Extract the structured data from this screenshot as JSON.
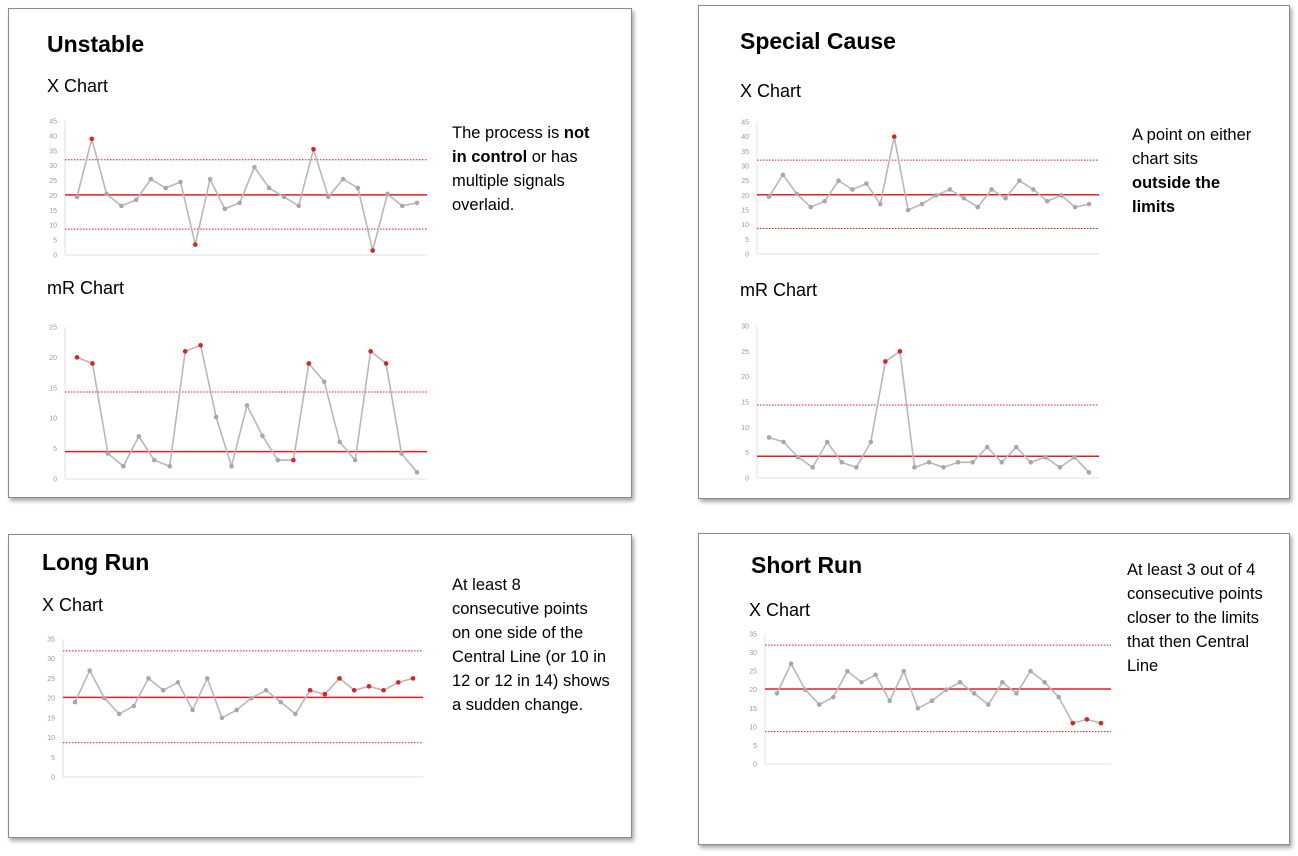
{
  "colors": {
    "signal": "#e02020",
    "line": "#b8b8b8",
    "point": "#a8a8a8",
    "axis": "#e2e2e2",
    "tick": "#9a9a9a"
  },
  "panels": [
    {
      "title": "Unstable",
      "desc": [
        {
          "t": "The process is ",
          "b": false
        },
        {
          "t": "not in control",
          "b": true
        },
        {
          "t": " or has multiple signals overlaid.",
          "b": false
        }
      ],
      "charts": [
        "X Chart",
        "mR Chart"
      ]
    },
    {
      "title": "Special Cause",
      "desc": [
        {
          "t": "A point on either chart sits ",
          "b": false
        },
        {
          "t": "outside the limits",
          "b": true
        }
      ],
      "charts": [
        "X Chart",
        "mR Chart"
      ]
    },
    {
      "title": "Long Run",
      "desc": [
        {
          "t": "At least 8 consecutive points on one side of the Central Line (or 10 in 12 or 12 in 14) shows a sudden change.",
          "b": false
        }
      ],
      "charts": [
        "X Chart"
      ]
    },
    {
      "title": "Short Run",
      "desc": [
        {
          "t": "At least 3 out of 4 consecutive points closer to the limits that then Central Line",
          "b": false
        }
      ],
      "charts": [
        "X Chart"
      ]
    }
  ],
  "chart_data": [
    {
      "id": "unstable-x",
      "type": "line",
      "title": "X Chart",
      "ylim": [
        0,
        45
      ],
      "yticks": [
        0,
        5,
        10,
        15,
        20,
        25,
        30,
        35,
        40,
        45
      ],
      "center": 20.2,
      "ucl": 32,
      "lcl": 8.7,
      "values": [
        19.5,
        39,
        20.5,
        16.5,
        18.5,
        25.5,
        22.5,
        24.5,
        3.5,
        25.5,
        15.5,
        17.5,
        29.5,
        22.5,
        19.5,
        16.5,
        35.5,
        19.5,
        25.5,
        22.5,
        1.5,
        20.5,
        16.5,
        17.5
      ],
      "signals": [
        1,
        8,
        16,
        20
      ]
    },
    {
      "id": "unstable-mr",
      "type": "line",
      "title": "mR Chart",
      "ylim": [
        0,
        25
      ],
      "yticks": [
        0,
        5,
        10,
        15,
        20,
        25
      ],
      "center": 4.5,
      "ucl": 14.3,
      "lcl": null,
      "values": [
        20,
        19,
        4.2,
        2.1,
        7,
        3.1,
        2.1,
        21,
        22,
        10.2,
        2.1,
        12.1,
        7.1,
        3.1,
        3.1,
        19,
        16,
        6.1,
        3.1,
        21,
        19,
        4.2,
        1.1
      ],
      "signals": [
        0,
        1,
        7,
        8,
        14,
        15,
        19,
        20
      ]
    },
    {
      "id": "special-x",
      "type": "line",
      "title": "X Chart",
      "ylim": [
        0,
        45
      ],
      "yticks": [
        0,
        5,
        10,
        15,
        20,
        25,
        30,
        35,
        40,
        45
      ],
      "center": 20.2,
      "ucl": 32,
      "lcl": 8.7,
      "values": [
        19.5,
        27,
        20.5,
        16,
        18,
        25,
        22,
        24,
        17,
        40,
        15,
        17,
        20,
        22,
        19,
        16,
        22,
        19,
        25,
        22,
        18,
        20,
        16,
        17
      ],
      "signals": [
        9
      ]
    },
    {
      "id": "special-mr",
      "type": "line",
      "title": "mR Chart",
      "ylim": [
        0,
        30
      ],
      "yticks": [
        0,
        5,
        10,
        15,
        20,
        25,
        30
      ],
      "center": 4.3,
      "ucl": 14.4,
      "lcl": null,
      "values": [
        8,
        7.1,
        4.1,
        2.1,
        7.1,
        3.1,
        2.1,
        7.1,
        23,
        25,
        2.1,
        3.1,
        2.1,
        3.1,
        3.1,
        6.1,
        3.1,
        6.1,
        3.1,
        4.1,
        2.1,
        4.1,
        1.1
      ],
      "signals": [
        8,
        9
      ]
    },
    {
      "id": "longrun-x",
      "type": "line",
      "title": "X Chart",
      "ylim": [
        0,
        35
      ],
      "yticks": [
        0,
        5,
        10,
        15,
        20,
        25,
        30,
        35
      ],
      "center": 20.2,
      "ucl": 32,
      "lcl": 8.7,
      "values": [
        19,
        27,
        20,
        16,
        18,
        25,
        22,
        24,
        17,
        25,
        15,
        17,
        20,
        22,
        19,
        16,
        22,
        21,
        25,
        22,
        23,
        22,
        24,
        25
      ],
      "signals": [
        16,
        17,
        18,
        19,
        20,
        21,
        22,
        23
      ]
    },
    {
      "id": "shortrun-x",
      "type": "line",
      "title": "X Chart",
      "ylim": [
        0,
        35
      ],
      "yticks": [
        0,
        5,
        10,
        15,
        20,
        25,
        30,
        35
      ],
      "center": 20.2,
      "ucl": 32,
      "lcl": 8.7,
      "values": [
        19,
        27,
        20,
        16,
        18,
        25,
        22,
        24,
        17,
        25,
        15,
        17,
        20,
        22,
        19,
        16,
        22,
        19,
        25,
        22,
        18,
        11,
        12,
        11
      ],
      "signals": [
        21,
        22,
        23
      ]
    }
  ]
}
